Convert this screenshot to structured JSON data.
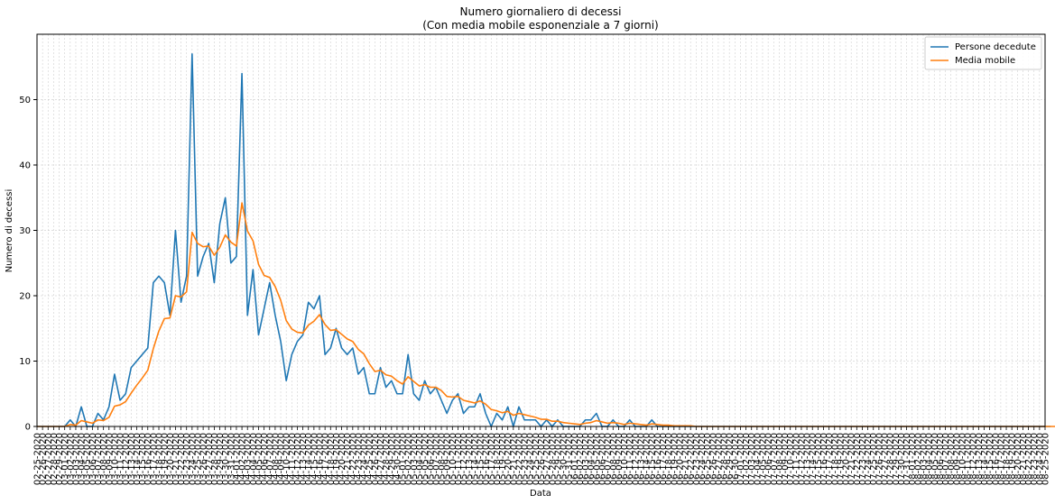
{
  "chart_data": {
    "type": "line",
    "title": "Numero giornaliero di decessi",
    "subtitle": "(Con media mobile esponenziale a 7 giorni)",
    "xlabel": "Data",
    "ylabel": "Numero di decessi",
    "x_start": "02-25-2020",
    "x_end": "08-25-2020",
    "ylim": [
      0,
      60
    ],
    "yticks": [
      0,
      10,
      20,
      30,
      40,
      50
    ],
    "grid": true,
    "legend_position": "top-right",
    "x_tick_labels": [
      "02-25-2020",
      "02-26-2020",
      "02-27-2020",
      "02-28-2020",
      "02-29-2020",
      "03-01-2020",
      "03-02-2020",
      "03-03-2020",
      "03-04-2020",
      "03-05-2020",
      "03-06-2020",
      "03-07-2020",
      "03-08-2020",
      "03-09-2020",
      "03-10-2020",
      "03-11-2020",
      "03-12-2020",
      "03-13-2020",
      "03-14-2020",
      "03-15-2020",
      "03-16-2020",
      "03-17-2020",
      "03-18-2020",
      "03-19-2020",
      "03-20-2020",
      "03-21-2020",
      "03-22-2020",
      "03-23-2020",
      "03-24-2020",
      "03-25-2020",
      "03-26-2020",
      "03-27-2020",
      "03-28-2020",
      "03-29-2020",
      "03-30-2020",
      "03-31-2020",
      "04-01-2020",
      "04-02-2020",
      "04-03-2020",
      "04-04-2020",
      "04-05-2020",
      "04-06-2020",
      "04-07-2020",
      "04-08-2020",
      "04-09-2020",
      "04-10-2020",
      "04-11-2020",
      "04-12-2020",
      "04-13-2020",
      "04-14-2020",
      "04-15-2020",
      "04-16-2020",
      "04-17-2020",
      "04-18-2020",
      "04-19-2020",
      "04-20-2020",
      "04-21-2020",
      "04-22-2020",
      "04-23-2020",
      "04-24-2020",
      "04-25-2020",
      "04-26-2020",
      "04-27-2020",
      "04-28-2020",
      "04-29-2020",
      "04-30-2020",
      "05-01-2020",
      "05-02-2020",
      "05-03-2020",
      "05-04-2020",
      "05-05-2020",
      "05-06-2020",
      "05-07-2020",
      "05-08-2020",
      "05-09-2020",
      "05-10-2020",
      "05-11-2020",
      "05-12-2020",
      "05-13-2020",
      "05-14-2020",
      "05-15-2020",
      "05-16-2020",
      "05-17-2020",
      "05-18-2020",
      "05-19-2020",
      "05-20-2020",
      "05-21-2020",
      "05-22-2020",
      "05-23-2020",
      "05-24-2020",
      "05-25-2020",
      "05-26-2020",
      "05-27-2020",
      "05-28-2020",
      "05-29-2020",
      "05-30-2020",
      "05-31-2020",
      "06-01-2020",
      "06-02-2020",
      "06-03-2020",
      "06-04-2020",
      "06-05-2020",
      "06-06-2020",
      "06-07-2020",
      "06-08-2020",
      "06-09-2020",
      "06-10-2020",
      "06-11-2020",
      "06-12-2020",
      "06-13-2020",
      "06-14-2020",
      "06-15-2020",
      "06-16-2020",
      "06-17-2020",
      "06-18-2020",
      "06-19-2020",
      "06-20-2020",
      "06-21-2020",
      "06-22-2020",
      "06-23-2020",
      "06-24-2020",
      "06-25-2020",
      "06-26-2020",
      "06-27-2020",
      "06-28-2020",
      "06-29-2020",
      "06-30-2020",
      "07-01-2020",
      "07-02-2020",
      "07-03-2020",
      "07-04-2020",
      "07-05-2020",
      "07-06-2020",
      "07-07-2020",
      "07-08-2020",
      "07-09-2020",
      "07-10-2020",
      "07-11-2020",
      "07-12-2020",
      "07-13-2020",
      "07-14-2020",
      "07-15-2020",
      "07-16-2020",
      "07-17-2020",
      "07-18-2020",
      "07-19-2020",
      "07-20-2020",
      "07-21-2020",
      "07-22-2020",
      "07-23-2020",
      "07-24-2020",
      "07-25-2020",
      "07-26-2020",
      "07-27-2020",
      "07-28-2020",
      "07-29-2020",
      "07-30-2020",
      "07-31-2020",
      "08-01-2020",
      "08-02-2020",
      "08-03-2020",
      "08-04-2020",
      "08-05-2020",
      "08-06-2020",
      "08-07-2020",
      "08-08-2020",
      "08-09-2020",
      "08-10-2020",
      "08-11-2020",
      "08-12-2020",
      "08-13-2020",
      "08-14-2020",
      "08-15-2020",
      "08-16-2020",
      "08-17-2020",
      "08-18-2020",
      "08-19-2020",
      "08-20-2020",
      "08-21-2020",
      "08-22-2020",
      "08-23-2020",
      "08-24-2020",
      "08-25-2020"
    ],
    "series": [
      {
        "name": "Persone decedute",
        "color": "#1f77b4",
        "values": [
          0,
          0,
          0,
          0,
          0,
          0,
          1,
          0,
          3,
          0,
          0,
          2,
          1,
          3,
          8,
          4,
          5,
          9,
          10,
          11,
          12,
          22,
          23,
          22,
          17,
          30,
          19,
          23,
          57,
          23,
          26,
          28,
          22,
          31,
          35,
          25,
          26,
          54,
          17,
          24,
          14,
          18,
          22,
          17,
          13,
          7,
          11,
          13,
          14,
          19,
          18,
          20,
          11,
          12,
          15,
          12,
          11,
          12,
          8,
          9,
          5,
          5,
          9,
          6,
          7,
          5,
          5,
          11,
          5,
          4,
          7,
          5,
          6,
          4,
          2,
          4,
          5,
          2,
          3,
          3,
          5,
          2,
          0,
          2,
          1,
          3,
          0,
          3,
          1,
          1,
          1,
          0,
          1,
          0,
          1,
          0,
          0,
          0,
          0,
          1,
          1,
          2,
          0,
          0,
          1,
          0,
          0,
          1,
          0,
          0,
          0,
          1,
          0,
          0,
          0,
          0,
          0,
          0,
          0,
          0,
          0,
          0,
          0,
          0,
          0,
          0,
          0,
          0,
          0,
          0,
          0,
          0,
          0,
          0,
          0,
          0,
          0,
          0,
          0,
          0,
          0,
          0,
          0,
          0,
          0,
          0,
          0,
          0,
          0,
          0,
          0,
          0,
          0,
          0,
          0,
          0,
          0,
          0,
          0,
          0,
          0,
          0,
          0,
          0,
          0,
          0,
          0,
          0,
          0,
          0,
          0,
          0,
          0,
          0,
          0,
          0,
          0,
          0,
          0,
          0,
          0,
          0,
          0,
          0
        ]
      },
      {
        "name": "Media mobile",
        "color": "#ff7f0e",
        "values": [
          0,
          0,
          0,
          0,
          0,
          0,
          0.3,
          0.2,
          0.9,
          0.7,
          0.5,
          1.0,
          0.9,
          1.4,
          3.1,
          3.3,
          3.8,
          5.1,
          6.3,
          7.4,
          8.6,
          11.9,
          14.6,
          16.5,
          16.6,
          20.0,
          19.8,
          20.6,
          29.7,
          28.0,
          27.5,
          27.6,
          26.2,
          27.4,
          29.3,
          28.2,
          27.6,
          34.2,
          29.9,
          28.4,
          24.8,
          23.1,
          22.8,
          21.4,
          19.3,
          16.2,
          14.9,
          14.4,
          14.3,
          15.5,
          16.1,
          17.1,
          15.6,
          14.7,
          14.8,
          14.1,
          13.4,
          13.0,
          11.8,
          11.1,
          9.6,
          8.4,
          8.6,
          7.9,
          7.7,
          7.0,
          6.5,
          7.6,
          6.9,
          6.2,
          6.4,
          6.0,
          6.0,
          5.5,
          4.6,
          4.5,
          4.6,
          4.0,
          3.8,
          3.6,
          3.9,
          3.4,
          2.6,
          2.4,
          2.1,
          2.3,
          1.7,
          2.0,
          1.8,
          1.6,
          1.4,
          1.1,
          1.1,
          0.8,
          0.8,
          0.6,
          0.5,
          0.4,
          0.3,
          0.5,
          0.6,
          0.9,
          0.7,
          0.5,
          0.6,
          0.5,
          0.3,
          0.5,
          0.4,
          0.3,
          0.2,
          0.4,
          0.3,
          0.2,
          0.2,
          0.1,
          0.1,
          0.1,
          0.1,
          0,
          0,
          0,
          0,
          0,
          0,
          0,
          0,
          0,
          0,
          0,
          0,
          0,
          0,
          0,
          0,
          0,
          0,
          0,
          0,
          0,
          0,
          0,
          0,
          0,
          0,
          0,
          0,
          0,
          0,
          0,
          0,
          0,
          0,
          0,
          0,
          0,
          0,
          0,
          0,
          0,
          0,
          0,
          0,
          0,
          0,
          0,
          0,
          0,
          0,
          0,
          0,
          0,
          0,
          0,
          0,
          0,
          0,
          0,
          0,
          0,
          0,
          0,
          0,
          0,
          0,
          0,
          0,
          0
        ]
      }
    ]
  }
}
